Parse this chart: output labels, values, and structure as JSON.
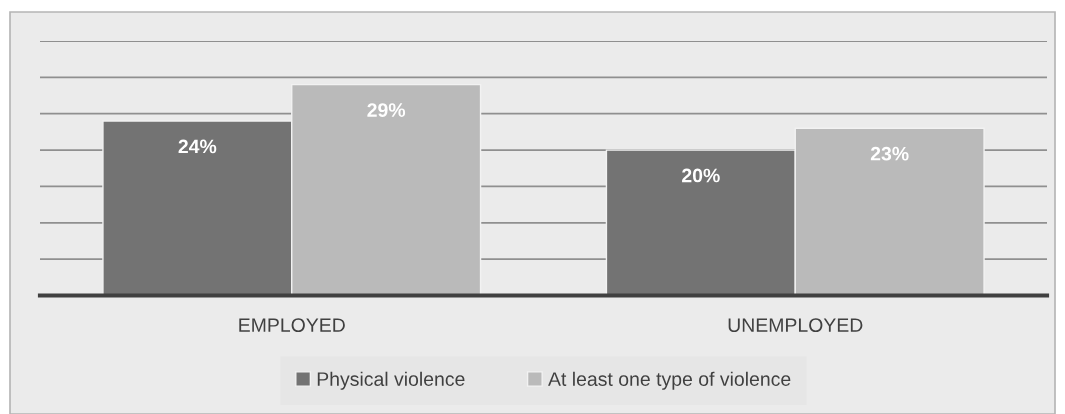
{
  "chart_data": {
    "type": "bar",
    "categories": [
      "EMPLOYED",
      "UNEMPLOYED"
    ],
    "series": [
      {
        "name": "Physical violence",
        "color": "#737373",
        "values": [
          24,
          20
        ],
        "value_labels": [
          "24%",
          "20%"
        ]
      },
      {
        "name": "At least one type of violence",
        "color": "#bababa",
        "values": [
          29,
          23
        ],
        "value_labels": [
          "29%",
          "23%"
        ]
      }
    ],
    "ylim": [
      0,
      35
    ],
    "yticks": [
      {
        "value": 0,
        "label": null
      },
      {
        "value": 5,
        "label": null
      },
      {
        "value": 10,
        "label": null
      },
      {
        "value": 15,
        "label": null
      },
      {
        "value": 20,
        "label": null
      },
      {
        "value": 25,
        "label": null
      },
      {
        "value": 30,
        "label": null
      },
      {
        "value": 35,
        "label": null
      }
    ],
    "grid": "y",
    "legend": "bottom",
    "tick_labels": "x"
  }
}
